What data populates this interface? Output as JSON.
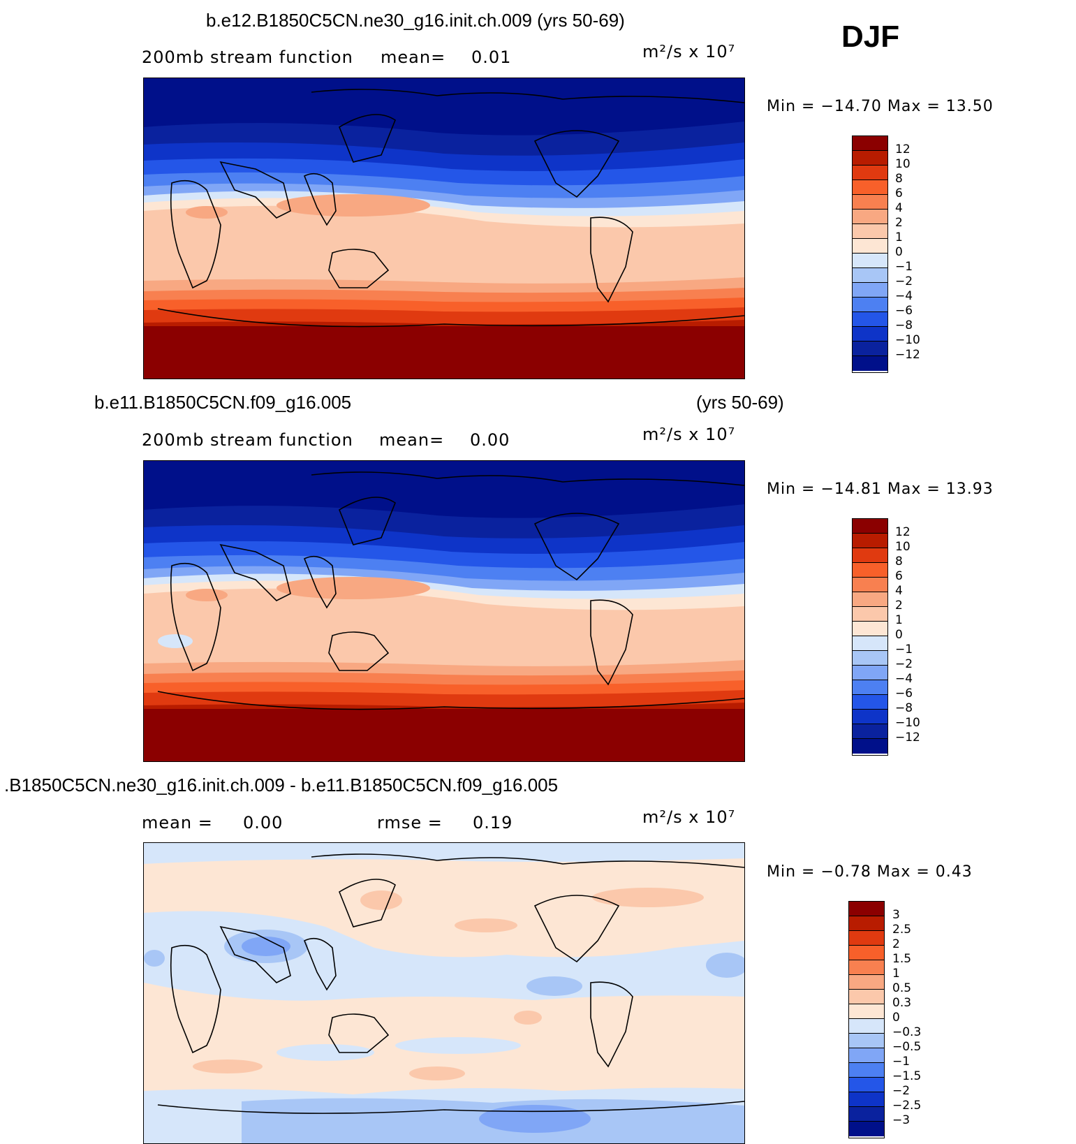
{
  "season": "DJF",
  "panels": [
    {
      "title": "b.e12.B1850C5CN.ne30_g16.init.ch.009 (yrs 50-69)",
      "subtitle_left": "200mb stream function",
      "mean_label": "mean=",
      "mean_value": "0.01",
      "units": "m²/s x 10⁷",
      "minmax": "Min = −14.70 Max =   13.50",
      "colorbar_labels": [
        "12",
        "10",
        "8",
        "6",
        "4",
        "2",
        "1",
        "0",
        "−1",
        "−2",
        "−4",
        "−6",
        "−8",
        "−10",
        "−12"
      ]
    },
    {
      "title_left": "b.e11.B1850C5CN.f09_g16.005",
      "title_right": "(yrs 50-69)",
      "subtitle_left": "200mb stream function",
      "mean_label": "mean=",
      "mean_value": "0.00",
      "units": "m²/s x 10⁷",
      "minmax": "Min = −14.81 Max =   13.93",
      "colorbar_labels": [
        "12",
        "10",
        "8",
        "6",
        "4",
        "2",
        "1",
        "0",
        "−1",
        "−2",
        "−4",
        "−6",
        "−8",
        "−10",
        "−12"
      ]
    },
    {
      "title": ".B1850C5CN.ne30_g16.init.ch.009 - b.e11.B1850C5CN.f09_g16.005",
      "mean_label": "mean =",
      "mean_value": "0.00",
      "rmse_label": "rmse =",
      "rmse_value": "0.19",
      "units": "m²/s x 10⁷",
      "minmax": "Min =   −0.78 Max =   0.43",
      "colorbar_labels": [
        "3",
        "2.5",
        "2",
        "1.5",
        "1",
        "0.5",
        "0.3",
        "0",
        "−0.3",
        "−0.5",
        "−1",
        "−1.5",
        "−2",
        "−2.5",
        "−3"
      ]
    }
  ],
  "colors": {
    "scale": [
      "#8b0000",
      "#b81c00",
      "#e03a10",
      "#f8602a",
      "#f88050",
      "#f8a882",
      "#fbc8ab",
      "#fde6d4",
      "#d6e6fa",
      "#a8c6f6",
      "#80a6f6",
      "#4d80f2",
      "#2456e8",
      "#0e34c8",
      "#0a229e",
      "#00108a"
    ]
  }
}
